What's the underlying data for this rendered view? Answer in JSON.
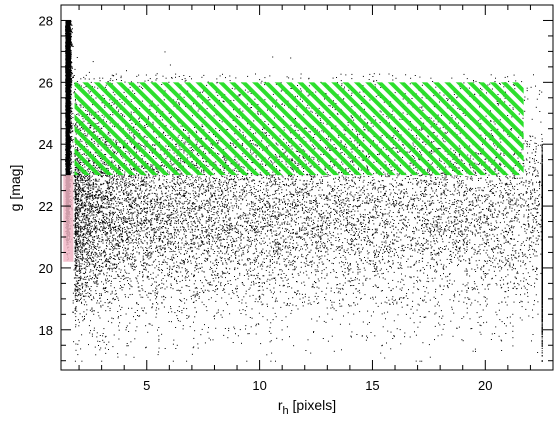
{
  "chart_data": {
    "type": "scatter",
    "title": "",
    "xlabel": {
      "main": "r",
      "sub": "h",
      "unit": " [pixels]"
    },
    "ylabel": "g [mag]",
    "xlim": [
      1.2,
      23
    ],
    "ylim": [
      16.7,
      28.5
    ],
    "x_ticks": [
      5,
      10,
      15,
      20
    ],
    "y_ticks": [
      18,
      20,
      22,
      24,
      26,
      28
    ],
    "x_tick_labels": [
      "5",
      "10",
      "15",
      "20"
    ],
    "y_tick_labels": [
      "18",
      "20",
      "22",
      "24",
      "26",
      "28"
    ],
    "point_color": "#000000",
    "series": [
      {
        "values_description": "dense stellar locus near small rh",
        "x_range": [
          1.25,
          1.8
        ],
        "y_range": [
          20.2,
          28.0
        ],
        "count_estimate": 9000
      },
      {
        "values_description": "galaxy cloud extending to larger radii",
        "x_range": [
          1.8,
          22.5
        ],
        "y_range": [
          17.0,
          27.0
        ],
        "count_estimate": 12000
      }
    ],
    "regions": [
      {
        "type": "hatched-box",
        "color": "#22dd22",
        "x_range": [
          1.8,
          21.7
        ],
        "y_range": [
          23.0,
          26.0
        ]
      },
      {
        "type": "shaded-box",
        "color": "#f2b6c6",
        "x_range": [
          1.3,
          1.75
        ],
        "y_range": [
          20.2,
          23.0
        ]
      }
    ]
  }
}
